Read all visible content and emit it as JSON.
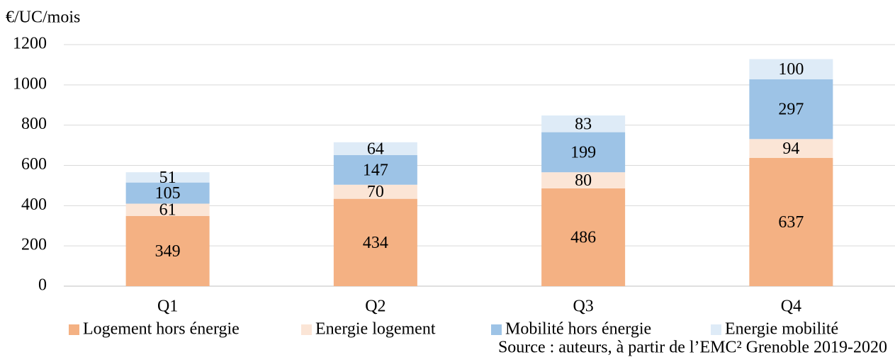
{
  "chart_data": {
    "type": "stacked_bar",
    "y_axis_label": "€/UC/mois",
    "categories": [
      "Q1",
      "Q2",
      "Q3",
      "Q4"
    ],
    "series": [
      {
        "name": "Logement hors énergie",
        "color": "#f4b183",
        "values": [
          349,
          434,
          486,
          637
        ]
      },
      {
        "name": "Energie logement",
        "color": "#fbe5d6",
        "values": [
          61,
          70,
          80,
          94
        ]
      },
      {
        "name": "Mobilité hors énergie",
        "color": "#9dc3e6",
        "values": [
          105,
          147,
          199,
          297
        ]
      },
      {
        "name": "Energie mobilité",
        "color": "#deebf7",
        "values": [
          51,
          64,
          83,
          100
        ]
      }
    ],
    "ylim": [
      0,
      1200
    ],
    "yticks": [
      0,
      200,
      400,
      600,
      800,
      1000,
      1200
    ],
    "grid": true,
    "legend": "bottom",
    "source": "Source : auteurs, à partir de l’EMC² Grenoble 2019-2020"
  }
}
